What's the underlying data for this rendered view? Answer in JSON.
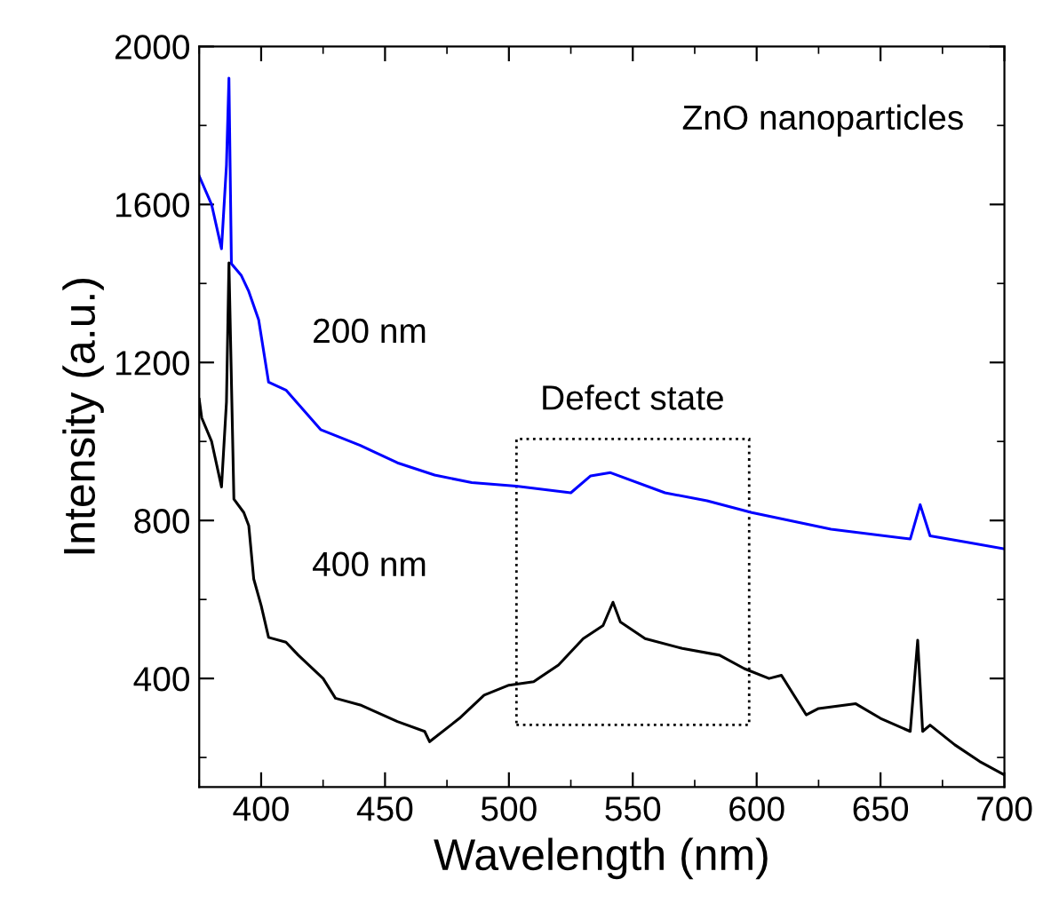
{
  "chart_data": {
    "type": "line",
    "xlabel": "Wavelength (nm)",
    "ylabel": "Intensity (a.u.)",
    "annotations": [
      "ZnO nanoparticles",
      "Defect state"
    ],
    "xlim": [
      375,
      700
    ],
    "xticks": [
      400,
      450,
      500,
      550,
      600,
      650,
      700
    ],
    "ylim": [
      125,
      2000
    ],
    "yticks": [
      400,
      800,
      1200,
      1600,
      2000
    ],
    "grid": false,
    "legend": false,
    "marker": "none",
    "line_style": "solid",
    "series": [
      {
        "name": "200 nm",
        "color": "#0000ff",
        "x": [
          375,
          380,
          384,
          386,
          387,
          388,
          392,
          395,
          399,
          403,
          410,
          424,
          440,
          455,
          470,
          485,
          503,
          525,
          533,
          541,
          563,
          580,
          598,
          630,
          662,
          666,
          670,
          685,
          700
        ],
        "values": [
          1672,
          1600,
          1488,
          1700,
          1920,
          1450,
          1420,
          1380,
          1308,
          1150,
          1130,
          1030,
          990,
          946,
          915,
          896,
          887,
          870,
          913,
          921,
          870,
          850,
          820,
          778,
          753,
          840,
          761,
          745,
          728
        ]
      },
      {
        "name": "400 nm",
        "color": "#000000",
        "x": [
          375,
          376,
          380,
          384,
          386,
          387,
          389,
          393,
          395,
          397,
          400,
          403,
          410,
          415,
          425,
          430,
          440,
          455,
          466,
          468,
          480,
          490,
          500,
          510,
          520,
          530,
          538,
          542,
          545,
          555,
          570,
          585,
          595,
          605,
          610,
          620,
          625,
          640,
          650,
          662,
          665,
          667,
          670,
          680,
          690,
          700
        ],
        "values": [
          1107,
          1060,
          1000,
          885,
          1100,
          1452,
          854,
          820,
          787,
          652,
          585,
          504,
          492,
          459,
          400,
          350,
          333,
          291,
          266,
          240,
          299,
          358,
          383,
          392,
          434,
          501,
          534,
          593,
          543,
          501,
          476,
          459,
          425,
          400,
          408,
          308,
          324,
          336,
          299,
          266,
          497,
          266,
          282,
          232,
          190,
          156
        ]
      }
    ]
  }
}
